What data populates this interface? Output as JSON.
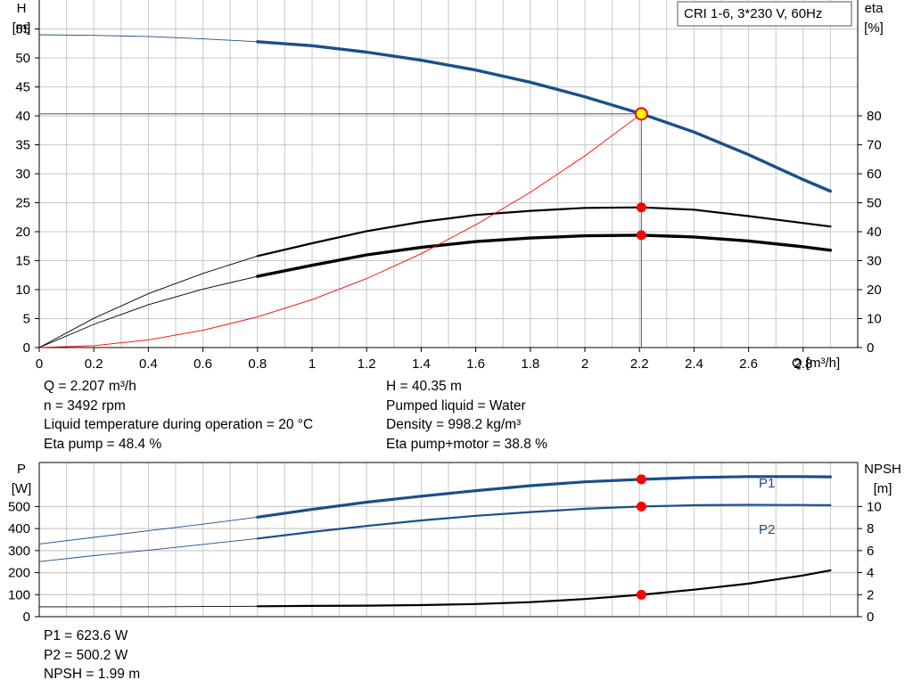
{
  "legend_box": {
    "text": "CRI 1-6, 3*230 V, 60Hz"
  },
  "top_chart": {
    "left_axis": {
      "name": "H",
      "unit": "[m]"
    },
    "right_axis": {
      "name": "eta",
      "unit": "[%]"
    },
    "x_axis": {
      "label": "Q [m³/h]"
    },
    "info_left": [
      "Q = 2.207 m³/h",
      "n = 3492 rpm",
      "Liquid temperature during operation = 20 °C",
      "Eta pump = 48.4 %"
    ],
    "info_right": [
      "H = 40.35 m",
      "Pumped liquid = Water",
      "Density = 998.2 kg/m³",
      "Eta pump+motor = 38.8 %"
    ]
  },
  "bottom_chart": {
    "left_axis": {
      "name": "P",
      "unit": "[W]"
    },
    "right_axis": {
      "name": "NPSH",
      "unit": "[m]"
    },
    "series_labels": {
      "p1": "P1",
      "p2": "P2"
    },
    "info_left": [
      "P1 = 623.6 W",
      "P2 = 500.2 W",
      "NPSH = 1.99 m"
    ]
  },
  "colors": {
    "blue": "#1a4f8a",
    "black": "#000000",
    "red": "#ff0000",
    "grid": "#c8c8c8",
    "operating_point_fill": "#ffff00"
  },
  "chart_data": [
    {
      "type": "line",
      "x_label": "Q [m³/h]",
      "x_ticks": [
        0,
        0.2,
        0.4,
        0.6,
        0.8,
        1.0,
        1.2,
        1.4,
        1.6,
        1.8,
        2.0,
        2.2,
        2.4,
        2.6,
        2.8
      ],
      "xlim": [
        0,
        3.0
      ],
      "y_left": {
        "label": "H [m]",
        "ticks": [
          0,
          5,
          10,
          15,
          20,
          25,
          30,
          35,
          40,
          45,
          50,
          55
        ],
        "lim": [
          0,
          60
        ]
      },
      "y_right": {
        "label": "eta [%]",
        "ticks": [
          0,
          10,
          20,
          30,
          40,
          50,
          60,
          70,
          80
        ],
        "lim": [
          0,
          120
        ]
      },
      "grid": true,
      "operating_point": {
        "x": 2.207,
        "H": 40.35,
        "eta_pump": 48.4,
        "eta_pump_motor": 38.8
      },
      "series": [
        {
          "key": "H",
          "axis": "left",
          "color": "#1a4f8a",
          "thin": [
            [
              0,
              54.0
            ],
            [
              0.2,
              53.9
            ],
            [
              0.4,
              53.7
            ],
            [
              0.6,
              53.3
            ],
            [
              0.8,
              52.8
            ]
          ],
          "thick": [
            [
              0.8,
              52.8
            ],
            [
              1.0,
              52.1
            ],
            [
              1.2,
              51.0
            ],
            [
              1.4,
              49.6
            ],
            [
              1.6,
              47.9
            ],
            [
              1.8,
              45.8
            ],
            [
              2.0,
              43.3
            ],
            [
              2.207,
              40.35
            ],
            [
              2.4,
              37.2
            ],
            [
              2.6,
              33.3
            ],
            [
              2.8,
              29.0
            ],
            [
              2.9,
              27.0
            ]
          ]
        },
        {
          "key": "eta_pump",
          "axis": "right",
          "color": "#000000",
          "thin": [
            [
              0,
              0
            ],
            [
              0.2,
              10.1
            ],
            [
              0.4,
              18.6
            ],
            [
              0.6,
              25.6
            ],
            [
              0.8,
              31.6
            ]
          ],
          "thick": [
            [
              0.8,
              31.6
            ],
            [
              1.0,
              36.0
            ],
            [
              1.2,
              40.2
            ],
            [
              1.4,
              43.4
            ],
            [
              1.6,
              45.8
            ],
            [
              1.8,
              47.2
            ],
            [
              2.0,
              48.2
            ],
            [
              2.207,
              48.4
            ],
            [
              2.4,
              47.6
            ],
            [
              2.6,
              45.4
            ],
            [
              2.8,
              43.0
            ],
            [
              2.9,
              41.8
            ]
          ]
        },
        {
          "key": "eta_pump_motor",
          "axis": "right",
          "color": "#000000",
          "bold": true,
          "thin": [
            [
              0,
              0
            ],
            [
              0.2,
              8.0
            ],
            [
              0.4,
              14.8
            ],
            [
              0.6,
              20.2
            ],
            [
              0.8,
              24.6
            ]
          ],
          "thick": [
            [
              0.8,
              24.6
            ],
            [
              1.0,
              28.4
            ],
            [
              1.2,
              32.0
            ],
            [
              1.4,
              34.6
            ],
            [
              1.6,
              36.6
            ],
            [
              1.8,
              37.8
            ],
            [
              2.0,
              38.6
            ],
            [
              2.207,
              38.8
            ],
            [
              2.4,
              38.2
            ],
            [
              2.6,
              36.8
            ],
            [
              2.8,
              34.8
            ],
            [
              2.9,
              33.6
            ]
          ]
        },
        {
          "key": "system_curve",
          "axis": "left",
          "color": "#ff0000",
          "thin": [
            [
              0,
              0
            ],
            [
              0.2,
              0.33
            ],
            [
              0.4,
              1.33
            ],
            [
              0.6,
              2.98
            ],
            [
              0.8,
              5.3
            ],
            [
              1.0,
              8.28
            ],
            [
              1.2,
              11.9
            ],
            [
              1.4,
              16.2
            ],
            [
              1.6,
              21.2
            ],
            [
              1.8,
              26.8
            ],
            [
              2.0,
              33.1
            ],
            [
              2.207,
              40.35
            ]
          ]
        }
      ]
    },
    {
      "type": "line",
      "xlim": [
        0,
        3.0
      ],
      "y_left": {
        "label": "P [W]",
        "ticks": [
          0,
          100,
          200,
          300,
          400,
          500
        ],
        "lim": [
          0,
          700
        ]
      },
      "y_right": {
        "label": "NPSH [m]",
        "ticks": [
          0,
          2,
          4,
          6,
          8,
          10
        ],
        "lim": [
          0,
          14
        ]
      },
      "grid": true,
      "operating_point": {
        "x": 2.207,
        "P1": 623.6,
        "P2": 500.2,
        "NPSH": 1.99
      },
      "series": [
        {
          "key": "P1",
          "name": "P1",
          "axis": "left",
          "color": "#1a4f8a",
          "thin": [
            [
              0,
              330
            ],
            [
              0.2,
              360
            ],
            [
              0.4,
              390
            ],
            [
              0.6,
              420
            ],
            [
              0.8,
              452
            ]
          ],
          "thick": [
            [
              0.8,
              452
            ],
            [
              1.0,
              487
            ],
            [
              1.2,
              520
            ],
            [
              1.4,
              547
            ],
            [
              1.6,
              572
            ],
            [
              1.8,
              595
            ],
            [
              2.0,
              612
            ],
            [
              2.207,
              623.6
            ],
            [
              2.4,
              632
            ],
            [
              2.6,
              636
            ],
            [
              2.8,
              636
            ],
            [
              2.9,
              635
            ]
          ]
        },
        {
          "key": "P2",
          "name": "P2",
          "axis": "left",
          "color": "#1a4f8a",
          "thin": [
            [
              0,
              250
            ],
            [
              0.2,
              277
            ],
            [
              0.4,
              302
            ],
            [
              0.6,
              328
            ],
            [
              0.8,
              355
            ]
          ],
          "thick": [
            [
              0.8,
              355
            ],
            [
              1.0,
              385
            ],
            [
              1.2,
              412
            ],
            [
              1.4,
              437
            ],
            [
              1.6,
              458
            ],
            [
              1.8,
              475
            ],
            [
              2.0,
              490
            ],
            [
              2.207,
              500.2
            ],
            [
              2.4,
              506
            ],
            [
              2.6,
              508
            ],
            [
              2.8,
              507
            ],
            [
              2.9,
              506
            ]
          ]
        },
        {
          "key": "NPSH",
          "axis": "right",
          "color": "#000000",
          "thin": [
            [
              0,
              0.9
            ],
            [
              0.4,
              0.9
            ],
            [
              0.8,
              0.95
            ]
          ],
          "thick": [
            [
              0.8,
              0.95
            ],
            [
              1.0,
              0.98
            ],
            [
              1.2,
              1.0
            ],
            [
              1.4,
              1.05
            ],
            [
              1.6,
              1.15
            ],
            [
              1.8,
              1.32
            ],
            [
              2.0,
              1.6
            ],
            [
              2.207,
              1.99
            ],
            [
              2.4,
              2.45
            ],
            [
              2.6,
              3.0
            ],
            [
              2.8,
              3.75
            ],
            [
              2.9,
              4.2
            ]
          ]
        }
      ]
    }
  ]
}
